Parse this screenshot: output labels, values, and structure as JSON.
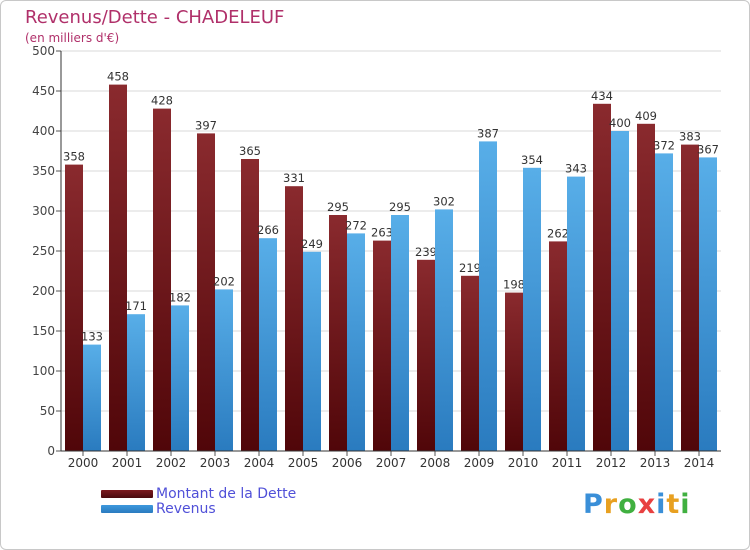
{
  "header": {
    "title": "Revenus/Dette - CHADELEUF",
    "subtitle": "(en milliers d'€)"
  },
  "legend": {
    "dette_label": "Montant de la Dette",
    "revenus_label": "Revenus"
  },
  "logo": {
    "letters": [
      "P",
      "r",
      "o",
      "x",
      "i",
      "t",
      "i"
    ],
    "colors": [
      "#3a8fd8",
      "#e8a020",
      "#40b040",
      "#e84040",
      "#3a8fd8",
      "#e8a020",
      "#40b040"
    ]
  },
  "colors": {
    "dette": "#7b1a1f",
    "revenus": "#3d98dd",
    "title": "#b0306a",
    "legend_text": "#5050d8"
  },
  "chart_data": {
    "type": "bar",
    "title": "Revenus/Dette - CHADELEUF",
    "subtitle": "(en milliers d'€)",
    "categories": [
      "2000",
      "2001",
      "2002",
      "2003",
      "2004",
      "2005",
      "2006",
      "2007",
      "2008",
      "2009",
      "2010",
      "2011",
      "2012",
      "2013",
      "2014"
    ],
    "series": [
      {
        "name": "Montant de la Dette",
        "color": "#7b1a1f",
        "values": [
          358,
          458,
          428,
          397,
          365,
          331,
          295,
          263,
          239,
          219,
          198,
          262,
          434,
          409,
          383
        ]
      },
      {
        "name": "Revenus",
        "color": "#3d98dd",
        "values": [
          133,
          171,
          182,
          202,
          266,
          249,
          272,
          295,
          302,
          387,
          354,
          343,
          400,
          372,
          367
        ]
      }
    ],
    "ylim": [
      0,
      500
    ],
    "yticks": [
      0,
      50,
      100,
      150,
      200,
      250,
      300,
      350,
      400,
      450,
      500
    ],
    "grid": true,
    "legend_position": "bottom-left"
  }
}
